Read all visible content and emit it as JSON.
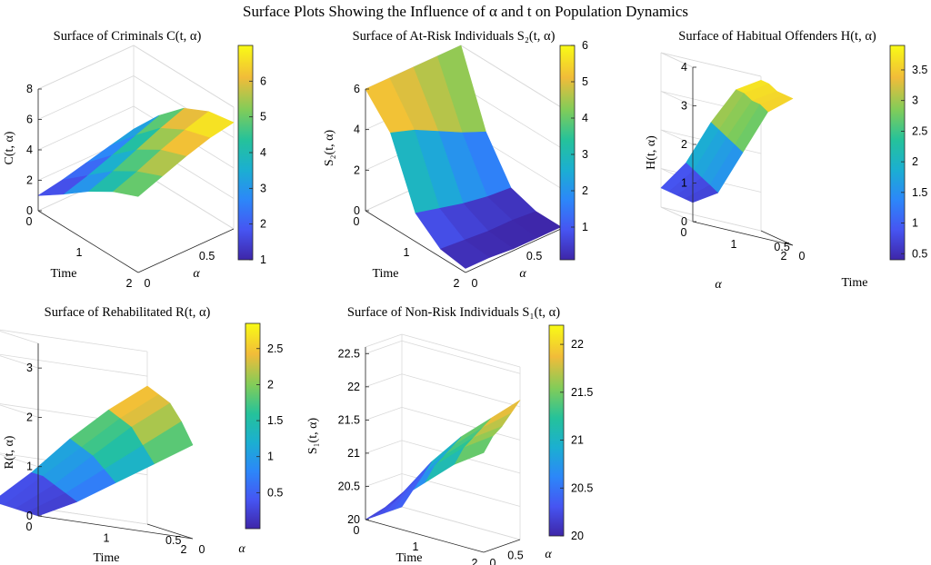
{
  "figure": {
    "title": "Surface Plots Showing the Influence of α and t on Population Dynamics"
  },
  "chart_data": [
    {
      "type": "surface",
      "title": "Surface of Criminals C(t, α)",
      "zlabel": "C(t, α)",
      "xlabel": "Time",
      "ylabel": "α",
      "x": [
        0,
        0.5,
        1,
        1.5,
        2
      ],
      "y": [
        0,
        0.2,
        0.4,
        0.6,
        0.8
      ],
      "z": [
        [
          1.0,
          2.1,
          3.3,
          4.3,
          5.0
        ],
        [
          1.3,
          2.6,
          3.9,
          4.9,
          5.6
        ],
        [
          1.7,
          3.2,
          4.6,
          5.6,
          6.2
        ],
        [
          2.1,
          3.8,
          5.3,
          6.2,
          6.7
        ],
        [
          2.5,
          4.4,
          5.9,
          6.7,
          7.0
        ]
      ],
      "zlim": [
        0,
        8
      ],
      "zticks": [
        "0",
        "2",
        "4",
        "6",
        "8"
      ],
      "xticks": [
        "0",
        "1",
        "2"
      ],
      "yticks": [
        "0",
        "0.5"
      ],
      "colorbar": {
        "min": 1,
        "max": 7,
        "ticks": [
          "1",
          "2",
          "3",
          "4",
          "5",
          "6"
        ]
      }
    },
    {
      "type": "surface",
      "title": "Surface of At-Risk Individuals S₂(t, α)",
      "zlabel": "S₂(t, α)",
      "xlabel": "Time",
      "ylabel": "α",
      "x": [
        0,
        0.5,
        1,
        1.5,
        2
      ],
      "y": [
        0,
        0.2,
        0.4,
        0.6,
        0.8
      ],
      "z": [
        [
          6.0,
          4.6,
          1.4,
          0.4,
          0.2
        ],
        [
          6.0,
          4.2,
          1.1,
          0.3,
          0.2
        ],
        [
          6.0,
          3.6,
          0.8,
          0.2,
          0.1
        ],
        [
          6.0,
          3.0,
          0.6,
          0.2,
          0.1
        ],
        [
          6.0,
          2.5,
          0.5,
          0.1,
          0.1
        ]
      ],
      "zlim": [
        0,
        6
      ],
      "zticks": [
        "0",
        "2",
        "4",
        "6"
      ],
      "xticks": [
        "0",
        "1",
        "2"
      ],
      "yticks": [
        "0",
        "0.5"
      ],
      "colorbar": {
        "min": 0.1,
        "max": 6,
        "ticks": [
          "1",
          "2",
          "3",
          "4",
          "5",
          "6"
        ]
      }
    },
    {
      "type": "surface",
      "title": "Surface of Habitual Offenders H(t, α)",
      "zlabel": "H(t, α)",
      "xlabel": "Time",
      "ylabel": "α",
      "x": [
        0,
        0.5,
        1,
        1.5,
        2
      ],
      "y": [
        0,
        0.2,
        0.4,
        0.6,
        0.8
      ],
      "z": [
        [
          0.5,
          0.9,
          2.1,
          3.3,
          3.8
        ],
        [
          0.5,
          1.0,
          2.2,
          3.4,
          3.8
        ],
        [
          0.5,
          1.1,
          2.3,
          3.4,
          3.8
        ],
        [
          0.5,
          1.2,
          2.4,
          3.5,
          3.9
        ],
        [
          0.5,
          1.3,
          2.5,
          3.5,
          3.9
        ]
      ],
      "zlim": [
        0,
        4
      ],
      "zticks": [
        "0",
        "1",
        "2",
        "3",
        "4"
      ],
      "xticks": [
        "0",
        "1",
        "2"
      ],
      "yticks": [
        "0",
        "0.5"
      ],
      "colorbar": {
        "min": 0.4,
        "max": 3.9,
        "ticks": [
          "0.5",
          "1",
          "1.5",
          "2",
          "2.5",
          "3",
          "3.5"
        ]
      }
    },
    {
      "type": "surface",
      "title": "Surface of Rehabilitated R(t, α)",
      "zlabel": "R(t, α)",
      "xlabel": "Time",
      "ylabel": "α",
      "x": [
        0,
        0.5,
        1,
        1.5,
        2
      ],
      "y": [
        0,
        0.2,
        0.4,
        0.6,
        0.8
      ],
      "z": [
        [
          0.0,
          0.4,
          0.9,
          1.4,
          1.9
        ],
        [
          0.0,
          0.5,
          1.1,
          1.7,
          2.3
        ],
        [
          0.0,
          0.6,
          1.3,
          2.0,
          2.6
        ],
        [
          0.0,
          0.7,
          1.4,
          2.1,
          2.7
        ],
        [
          0.0,
          0.7,
          1.5,
          2.2,
          2.8
        ]
      ],
      "zlim": [
        0,
        3.5
      ],
      "zticks": [
        "0",
        "1",
        "2",
        "3"
      ],
      "xticks": [
        "0",
        "1",
        "2"
      ],
      "yticks": [
        "0",
        "0.5"
      ],
      "colorbar": {
        "min": 0,
        "max": 2.85,
        "ticks": [
          "0.5",
          "1",
          "1.5",
          "2",
          "2.5"
        ]
      }
    },
    {
      "type": "surface",
      "title": "Surface of Non-Risk Individuals S₁(t, α)",
      "zlabel": "S₁(t, α)",
      "xlabel": "Time",
      "ylabel": "α",
      "x": [
        0,
        0.5,
        1,
        1.5,
        2
      ],
      "y": [
        0,
        0.2,
        0.4,
        0.6,
        0.8
      ],
      "z": [
        [
          20.0,
          20.4,
          20.8,
          21.2,
          21.5
        ],
        [
          20.0,
          20.5,
          21.0,
          21.4,
          21.7
        ],
        [
          20.0,
          20.6,
          21.1,
          21.5,
          21.8
        ],
        [
          20.0,
          20.7,
          21.2,
          21.6,
          21.95
        ],
        [
          20.0,
          20.8,
          21.3,
          21.7,
          22.1
        ]
      ],
      "zlim": [
        20,
        22.6
      ],
      "zticks": [
        "20",
        "20.5",
        "21",
        "21.5",
        "22",
        "22.5"
      ],
      "xticks": [
        "0",
        "1",
        "2"
      ],
      "yticks": [
        "0",
        "0.5"
      ],
      "colorbar": {
        "min": 20,
        "max": 22.2,
        "ticks": [
          "20",
          "20.5",
          "21",
          "21.5",
          "22"
        ]
      }
    }
  ]
}
